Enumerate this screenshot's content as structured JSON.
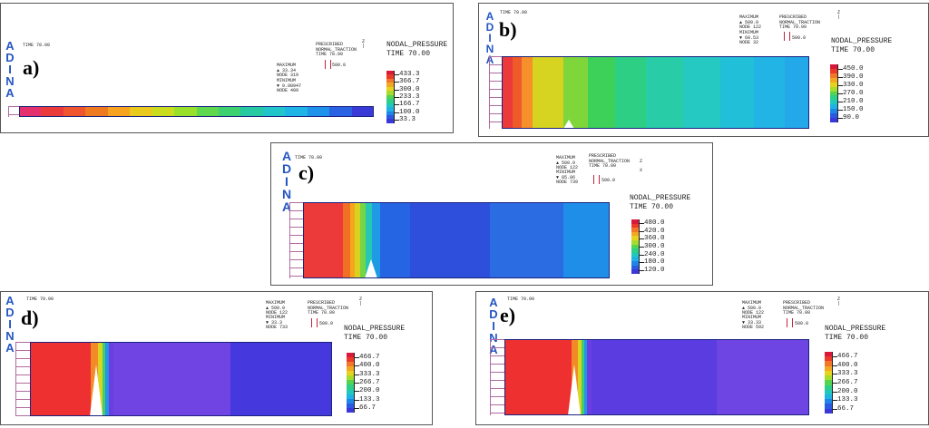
{
  "logo_letters": [
    "A",
    "D",
    "I",
    "N",
    "A"
  ],
  "panels": [
    {
      "label": "a)",
      "time": "TIME 70.00",
      "info_max": "MAXIMUM\n▲ 33.34\nNODE 319",
      "info_min": "MINIMUM\n▼ 0.00947\nNODE 409",
      "load": "PRESCRIBED\nNORMAL_TRACTION\nTIME 70.00",
      "load_value": "500.0",
      "axis": "Z\n|",
      "legend_title": "NODAL_PRESSURE\nTIME 70.00",
      "legend_labels": [
        "433.3",
        "366.7",
        "300.0",
        "233.3",
        "166.7",
        "100.0",
        "33.3"
      ],
      "bands": [
        "#e4306c",
        "#ea3a3a",
        "#ef5630",
        "#f07a1f",
        "#f7a31f",
        "#e9c91c",
        "#c9dd1e",
        "#98e02a",
        "#5fd84d",
        "#3fd070",
        "#27c9a0",
        "#22c5c9",
        "#1fb4e6",
        "#1f92ea",
        "#2a62e4",
        "#3a3bd6"
      ]
    },
    {
      "label": "b)",
      "time": "TIME 70.00",
      "info_max": "MAXIMUM\n▲ 500.0\nNODE 122",
      "info_min": "MINIMUM\n▼ 60.53\nNODE 32",
      "load": "PRESCRIBED\nNORMAL_TRACTION\nTIME 70.00",
      "load_value": "500.0",
      "axis": "Z\n|",
      "legend_title": "NODAL_PRESSURE\nTIME 70.00",
      "legend_labels": [
        "450.0",
        "390.0",
        "330.0",
        "270.0",
        "210.0",
        "150.0",
        "90.0"
      ],
      "bands": [
        "#ec3a3a",
        "#ef5a2a",
        "#f5902a",
        "#d6d421",
        "#7fd63b",
        "#3ed15a",
        "#2dcf85",
        "#28cda8",
        "#25c9c2",
        "#22bfd8",
        "#22b4e4",
        "#23a8ea"
      ]
    },
    {
      "label": "c)",
      "time": "TIME 70.00",
      "info_max": "MAXIMUM\n▲ 500.0\nNODE 122",
      "info_min": "MINIMUM\n▼ 85.06\nNODE 739",
      "load": "PRESCRIBED\nNORMAL_TRACTION\nTIME 70.00",
      "load_value": "500.0",
      "axis": "Z\nX",
      "legend_title": "NODAL_PRESSURE\nTIME 70.00",
      "legend_labels": [
        "480.0",
        "420.0",
        "360.0",
        "300.0",
        "240.0",
        "180.0",
        "120.0"
      ],
      "bands": [
        "#ec3a3a",
        "#f07024",
        "#f6a51d",
        "#d9d21f",
        "#77d445",
        "#25c9b3",
        "#1f9be6",
        "#2564e2",
        "#2d4fdc",
        "#2c6ce3",
        "#1f8ee9"
      ]
    },
    {
      "label": "d)",
      "time": "TIME 70.00",
      "info_max": "MAXIMUM\n▲ 500.0\nNODE 122",
      "info_min": "MINIMUM\n▼ 33.3\nNODE 733",
      "load": "PRESCRIBED\nNORMAL_TRACTION\nTIME 70.00",
      "load_value": "500.0",
      "axis": "Z\n|",
      "legend_title": "NODAL_PRESSURE\nTIME 70.00",
      "legend_labels": [
        "466.7",
        "400.0",
        "333.3",
        "266.7",
        "200.0",
        "133.3",
        "66.7"
      ],
      "bands": [
        "#ee3030",
        "#f28a25",
        "#d9d520",
        "#40cc6f",
        "#2295e4",
        "#6a3ee0",
        "#7044e2",
        "#4538dc"
      ]
    },
    {
      "label": "e)",
      "time": "TIME 70.00",
      "info_max": "MAXIMUM\n▲ 500.0\nNODE 122",
      "info_min": "MINIMUM\n▼ 33.33\nNODE 592",
      "load": "PRESCRIBED\nNORMAL_TRACTION\nTIME 70.00",
      "load_value": "500.0",
      "axis": "Z\n|",
      "legend_title": "NODAL_PRESSURE\nTIME 70.00",
      "legend_labels": [
        "466.7",
        "400.0",
        "333.3",
        "266.7",
        "200.0",
        "133.3",
        "66.7"
      ],
      "bands": [
        "#ee3030",
        "#f28a25",
        "#d9d520",
        "#40cc6f",
        "#2295e4",
        "#6a3ee0",
        "#5a3ce0",
        "#6e44e2"
      ]
    }
  ],
  "legend_colors": [
    "#d8193a",
    "#ec3a2a",
    "#f1772a",
    "#f2a822",
    "#e6d320",
    "#a8dc2c",
    "#55d44f",
    "#2ecf86",
    "#22c8bd",
    "#1fb3e3",
    "#1f86e8",
    "#2a5ae2",
    "#3a38d8"
  ]
}
